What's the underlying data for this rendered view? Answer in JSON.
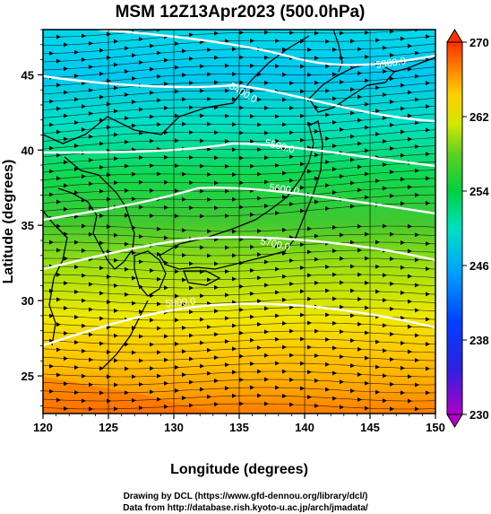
{
  "chart_data": {
    "type": "heatmap",
    "title": "MSM 12Z13Apr2023 (500.0hPa)",
    "xlabel": "Longitude (degrees)",
    "ylabel": "Latitude  (degrees)",
    "xlim": [
      120,
      150
    ],
    "ylim": [
      22.5,
      48
    ],
    "x_ticks": [
      "120",
      "125",
      "130",
      "135",
      "140",
      "145",
      "150"
    ],
    "y_ticks": [
      "25",
      "30",
      "35",
      "40",
      "45"
    ],
    "colorbar": {
      "range": [
        230,
        270
      ],
      "ticks": [
        "230",
        "238",
        "246",
        "254",
        "262",
        "270"
      ]
    },
    "contour_labels": [
      "5300.0",
      "5400.0",
      "5500.0",
      "5600.0",
      "5700.0",
      "5800.0"
    ]
  },
  "credits": {
    "line1": "Drawing by DCL (https://www.gfd-dennou.org/library/dcl/)",
    "line2": "Data from http://database.rish.kyoto-u.ac.jp/arch/jmadata/"
  }
}
